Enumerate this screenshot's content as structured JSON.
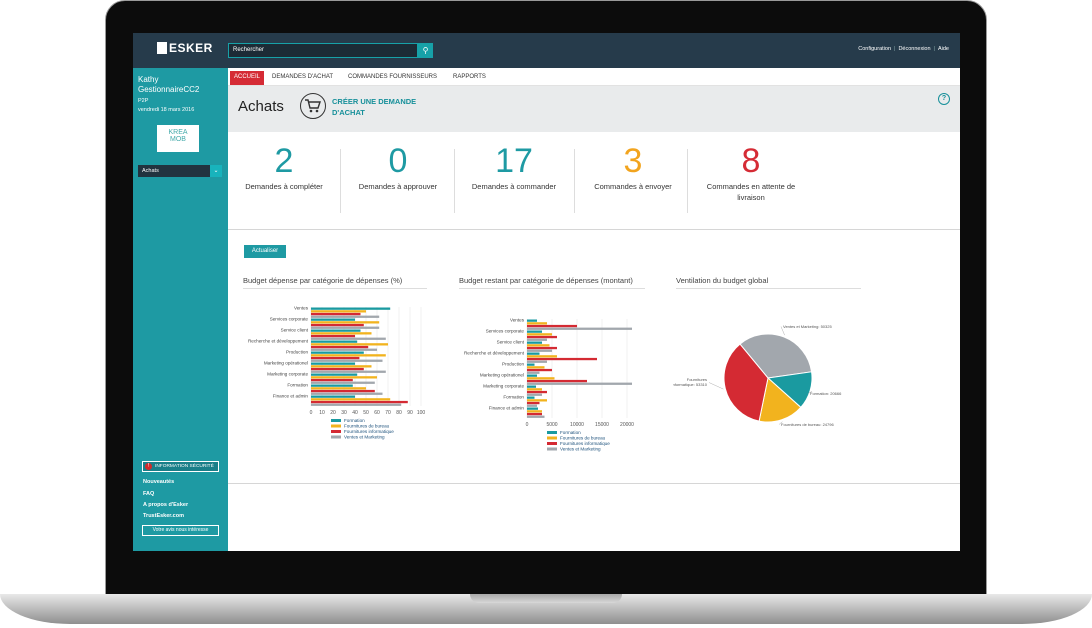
{
  "topbar": {
    "logo_text": "ESKER",
    "search_placeholder": "Rechercher",
    "links": [
      "Configuration",
      "Déconnexion",
      "Aide"
    ]
  },
  "sidebar": {
    "user_name": "Kathy GestionnaireCC2",
    "user_role": "P2P",
    "date": "vendredi 18 mars 2016",
    "company_logo_text": [
      "KREA",
      "MOB"
    ],
    "nav_select": "Achats",
    "security_label": "INFORMATION SÉCURITÉ",
    "links": [
      "Nouveautés",
      "FAQ",
      "A propos d'Esker",
      "TrustEsker.com"
    ],
    "feedback_label": "Votre avis nous intéresse"
  },
  "tabs": [
    "ACCUEIL",
    "DEMANDES D'ACHAT",
    "COMMANDES FOURNISSEURS",
    "RAPPORTS"
  ],
  "header": {
    "title": "Achats",
    "create_label_line1": "CRÉER UNE DEMANDE",
    "create_label_line2": "D'ACHAT"
  },
  "kpis": [
    {
      "value": "2",
      "label": "Demandes à compléter",
      "color": "#1e9aa3"
    },
    {
      "value": "0",
      "label": "Demandes à approuver",
      "color": "#1e9aa3"
    },
    {
      "value": "17",
      "label": "Demandes à commander",
      "color": "#1e9aa3"
    },
    {
      "value": "3",
      "label": "Commandes à envoyer",
      "color": "#f2a41e"
    },
    {
      "value": "8",
      "label": "Commandes en attente de livraison",
      "color": "#d52b35"
    }
  ],
  "refresh_label": "Actualiser",
  "chart_data": [
    {
      "type": "bar",
      "orientation": "horizontal",
      "title": "Budget dépense par catégorie de dépenses (%)",
      "categories": [
        "Ventes",
        "Services corporate",
        "Service client",
        "Recherche et développement",
        "Production",
        "Marketing opérationel",
        "Marketing corporate",
        "Formation",
        "Finance et admin"
      ],
      "series": [
        {
          "name": "Formation",
          "color": "#1a9aa0",
          "values": [
            72,
            40,
            45,
            42,
            48,
            40,
            42,
            38,
            40
          ]
        },
        {
          "name": "Fournitures de bureau",
          "color": "#f2b31e",
          "values": [
            50,
            62,
            55,
            70,
            68,
            55,
            60,
            50,
            72
          ]
        },
        {
          "name": "Fournitures informatique",
          "color": "#d42a33",
          "values": [
            45,
            48,
            40,
            52,
            44,
            48,
            38,
            58,
            88
          ]
        },
        {
          "name": "Ventes et Marketing",
          "color": "#a2a7ad",
          "values": [
            62,
            62,
            68,
            60,
            65,
            68,
            58,
            65,
            82
          ]
        }
      ],
      "xlim": [
        0,
        100
      ],
      "xticks": [
        0,
        10,
        20,
        30,
        40,
        50,
        60,
        70,
        80,
        90,
        100
      ],
      "legend": "bottom"
    },
    {
      "type": "bar",
      "orientation": "horizontal",
      "title": "Budget restant par catégorie de dépenses (montant)",
      "categories": [
        "Ventes",
        "Services corporate",
        "Service client",
        "Recherche et développement",
        "Production",
        "Marketing opérationel",
        "Marketing corporate",
        "Formation",
        "Finance et admin"
      ],
      "series": [
        {
          "name": "Formation",
          "color": "#1a9aa0",
          "values": [
            2000,
            3000,
            3000,
            2500,
            1500,
            2000,
            1800,
            1500,
            2200
          ]
        },
        {
          "name": "Fournitures de bureau",
          "color": "#f2b31e",
          "values": [
            4000,
            5000,
            4500,
            6000,
            3500,
            5500,
            3000,
            4000,
            3000
          ]
        },
        {
          "name": "Fournitures informatique",
          "color": "#d42a33",
          "values": [
            10000,
            6000,
            6000,
            14000,
            5000,
            12000,
            4000,
            2500,
            3000
          ]
        },
        {
          "name": "Ventes et Marketing",
          "color": "#a2a7ad",
          "values": [
            21000,
            4000,
            5000,
            4000,
            2500,
            21000,
            3000,
            2000,
            3500
          ]
        }
      ],
      "xlim": [
        0,
        22000
      ],
      "xticks": [
        0,
        5000,
        10000,
        15000,
        20000
      ],
      "legend": "bottom"
    },
    {
      "type": "pie",
      "title": "Ventilation du budget global",
      "slices": [
        {
          "label": "Ventes et Marketing: 50325",
          "value": 50325,
          "color": "#a2a7ad"
        },
        {
          "label": "Formation: 20666",
          "value": 20666,
          "color": "#1a9aa0"
        },
        {
          "label": "Fournitures de bureau: 24796",
          "value": 24796,
          "color": "#f2b31e"
        },
        {
          "label": "Fournitures informatique: 53310",
          "value": 53310,
          "color": "#d42a33"
        }
      ]
    }
  ]
}
